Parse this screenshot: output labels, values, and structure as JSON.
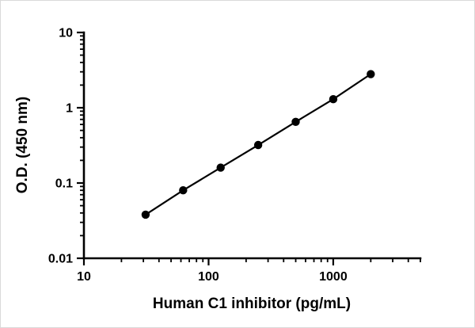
{
  "chart_data": {
    "type": "scatter",
    "title": "",
    "xlabel": "Human C1 inhibitor (pg/mL)",
    "ylabel": "O.D. (450 nm)",
    "xscale": "log",
    "yscale": "log",
    "xlim": [
      10,
      5000
    ],
    "ylim": [
      0.01,
      10
    ],
    "x": [
      31.25,
      62.5,
      125,
      250,
      500,
      1000,
      2000
    ],
    "y": [
      0.038,
      0.08,
      0.16,
      0.32,
      0.65,
      1.3,
      2.8
    ],
    "x_major_ticks": [
      10,
      100,
      1000
    ],
    "x_major_tick_labels": [
      "10",
      "100",
      "1000"
    ],
    "y_major_ticks": [
      0.01,
      0.1,
      1,
      10
    ],
    "y_major_tick_labels": [
      "0.01",
      "0.1",
      "1",
      "10"
    ],
    "grid": false,
    "legend_position": "none",
    "line_style": "solid",
    "axis_color": "#000000",
    "line_color": "#000000",
    "marker_color": "#000000"
  }
}
